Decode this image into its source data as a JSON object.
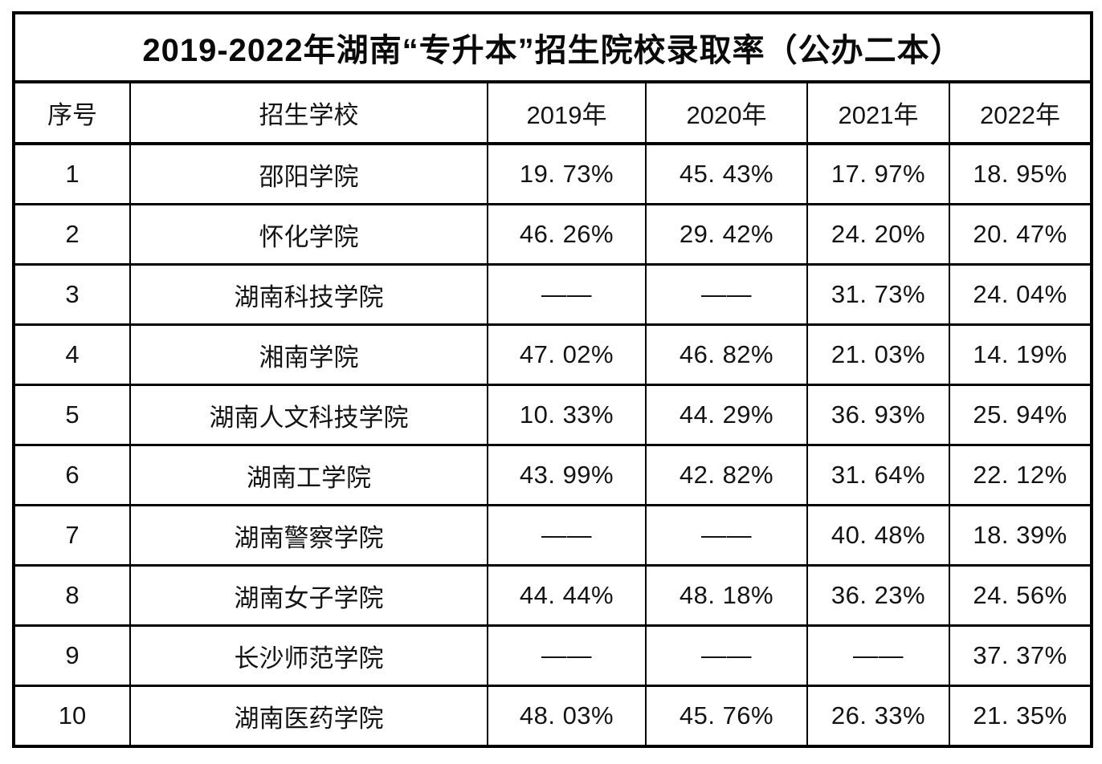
{
  "title": "2019-2022年湖南“专升本”招生院校录取率（公办二本）",
  "table": {
    "headers": [
      "序号",
      "招生学校",
      "2019年",
      "2020年",
      "2021年",
      "2022年"
    ],
    "rows": [
      [
        "1",
        "邵阳学院",
        "19. 73%",
        "45. 43%",
        "17. 97%",
        "18. 95%"
      ],
      [
        "2",
        "怀化学院",
        "46. 26%",
        "29. 42%",
        "24. 20%",
        "20. 47%"
      ],
      [
        "3",
        "湖南科技学院",
        "——",
        "——",
        "31. 73%",
        "24. 04%"
      ],
      [
        "4",
        "湘南学院",
        "47. 02%",
        "46. 82%",
        "21. 03%",
        "14. 19%"
      ],
      [
        "5",
        "湖南人文科技学院",
        "10. 33%",
        "44. 29%",
        "36. 93%",
        "25. 94%"
      ],
      [
        "6",
        "湖南工学院",
        "43. 99%",
        "42. 82%",
        "31. 64%",
        "22. 12%"
      ],
      [
        "7",
        "湖南警察学院",
        "——",
        "——",
        "40. 48%",
        "18. 39%"
      ],
      [
        "8",
        "湖南女子学院",
        "44. 44%",
        "48. 18%",
        "36. 23%",
        "24. 56%"
      ],
      [
        "9",
        "长沙师范学院",
        "——",
        "——",
        "——",
        "37. 37%"
      ],
      [
        "10",
        "湖南医药学院",
        "48. 03%",
        "45. 76%",
        "26. 33%",
        "21. 35%"
      ]
    ]
  },
  "chart_data": {
    "type": "table",
    "title": "2019-2022年湖南“专升本”招生院校录取率（公办二本）",
    "columns": [
      "序号",
      "招生学校",
      "2019年",
      "2020年",
      "2021年",
      "2022年"
    ],
    "categories": [
      "邵阳学院",
      "怀化学院",
      "湖南科技学院",
      "湘南学院",
      "湖南人文科技学院",
      "湖南工学院",
      "湖南警察学院",
      "湖南女子学院",
      "长沙师范学院",
      "湖南医药学院"
    ],
    "unit": "%",
    "missing_marker": "——",
    "series": [
      {
        "name": "2019年",
        "values": [
          19.73,
          46.26,
          null,
          47.02,
          10.33,
          43.99,
          null,
          44.44,
          null,
          48.03
        ]
      },
      {
        "name": "2020年",
        "values": [
          45.43,
          29.42,
          null,
          46.82,
          44.29,
          42.82,
          null,
          48.18,
          null,
          45.76
        ]
      },
      {
        "name": "2021年",
        "values": [
          17.97,
          24.2,
          31.73,
          21.03,
          36.93,
          31.64,
          40.48,
          36.23,
          null,
          26.33
        ]
      },
      {
        "name": "2022年",
        "values": [
          18.95,
          20.47,
          24.04,
          14.19,
          25.94,
          22.12,
          18.39,
          24.56,
          37.37,
          21.35
        ]
      }
    ],
    "colors": {
      "border": "#000000",
      "text": "#141414",
      "background": "#ffffff"
    }
  }
}
